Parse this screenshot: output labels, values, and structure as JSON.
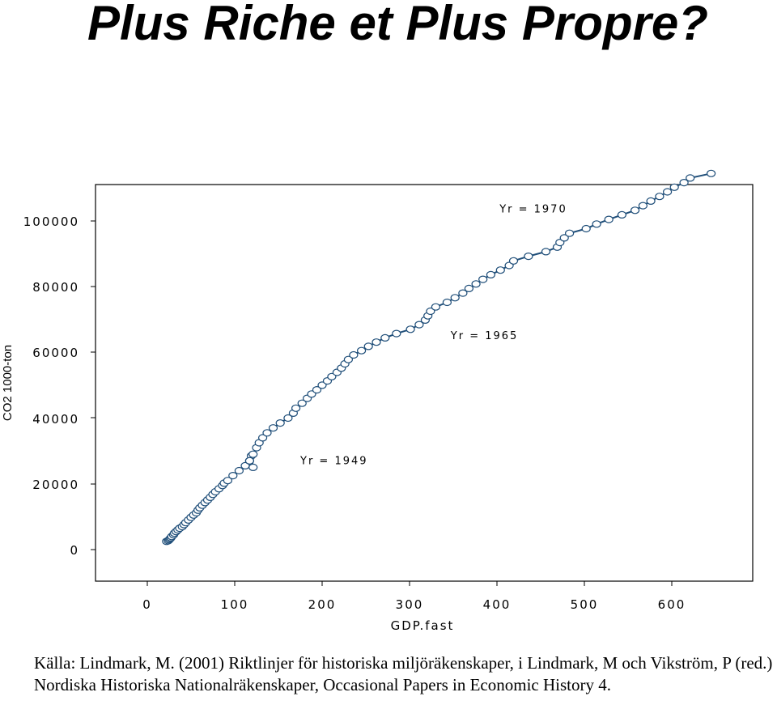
{
  "title": "Plus Riche et Plus Propre?",
  "source": "Källa: Lindmark, M. (2001) Riktlinjer för historiska miljöräkenskaper, i Lindmark, M och Vikström, P (red.) Nordiska Historiska Nationalräkenskaper, Occasional Papers in Economic History 4.",
  "chart_data": {
    "type": "line",
    "title": "",
    "xlabel": "GDP.fast",
    "ylabel": "CO2 1000-ton",
    "xlim": [
      -30,
      660
    ],
    "ylim": [
      -10000,
      112000
    ],
    "x_ticks": [
      0,
      100,
      200,
      300,
      400,
      500,
      600
    ],
    "x_tick_labels": [
      "0",
      "100",
      "200",
      "300",
      "400",
      "500",
      "600"
    ],
    "y_ticks": [
      0,
      20000,
      40000,
      60000,
      80000,
      100000
    ],
    "y_tick_labels": [
      "0",
      "20000",
      "40000",
      "60000",
      "80000",
      "100000"
    ],
    "grid": false,
    "legend": "none",
    "line_color": "#1f4e79",
    "marker": "open-circle",
    "annotations": [
      {
        "text": "Yr = 1949",
        "x": 175,
        "y": 26000
      },
      {
        "text": "Yr = 1965",
        "x": 347,
        "y": 64000
      },
      {
        "text": "Yr = 1970",
        "x": 403,
        "y": 102500
      }
    ],
    "series": [
      {
        "name": "",
        "x": [
          22,
          24,
          25,
          26,
          27,
          28,
          30,
          31,
          33,
          35,
          37,
          40,
          42,
          44,
          47,
          50,
          53,
          56,
          58,
          60,
          63,
          66,
          69,
          72,
          75,
          78,
          82,
          86,
          88,
          92,
          98,
          105,
          112,
          117,
          119,
          121,
          117,
          121,
          125,
          128,
          132,
          137,
          144,
          152,
          161,
          167,
          170,
          177,
          183,
          188,
          194,
          200,
          206,
          211,
          217,
          222,
          226,
          230,
          236,
          245,
          253,
          262,
          272,
          285,
          301,
          311,
          318,
          321,
          324,
          330,
          343,
          352,
          361,
          368,
          376,
          384,
          393,
          404,
          414,
          419,
          436,
          456,
          469,
          472,
          477,
          483,
          502,
          514,
          528,
          543,
          558,
          567,
          576,
          586,
          595,
          603,
          614,
          621,
          645
        ],
        "y": [
          2500,
          2700,
          3000,
          3300,
          3600,
          4000,
          4500,
          5000,
          5500,
          6000,
          6500,
          7000,
          7600,
          8200,
          9000,
          9800,
          10500,
          11200,
          12000,
          12700,
          13500,
          14300,
          15100,
          15900,
          16800,
          17600,
          18500,
          19500,
          20200,
          21000,
          22500,
          24000,
          25500,
          27000,
          28500,
          25000,
          27000,
          29000,
          31000,
          32500,
          34000,
          35500,
          37000,
          38500,
          40000,
          41500,
          43000,
          44500,
          46000,
          47300,
          48600,
          50000,
          51300,
          52600,
          53900,
          55200,
          56500,
          57800,
          59200,
          60500,
          61800,
          63100,
          64400,
          65700,
          67000,
          68400,
          69800,
          71100,
          72500,
          73800,
          75200,
          76600,
          78000,
          79400,
          80800,
          82200,
          83600,
          85000,
          86400,
          87800,
          89200,
          90600,
          92000,
          93400,
          94800,
          96200,
          97600,
          99000,
          100400,
          101800,
          103200,
          104600,
          106000,
          107400,
          108800,
          110200,
          111600,
          113000,
          114400
        ]
      }
    ]
  }
}
